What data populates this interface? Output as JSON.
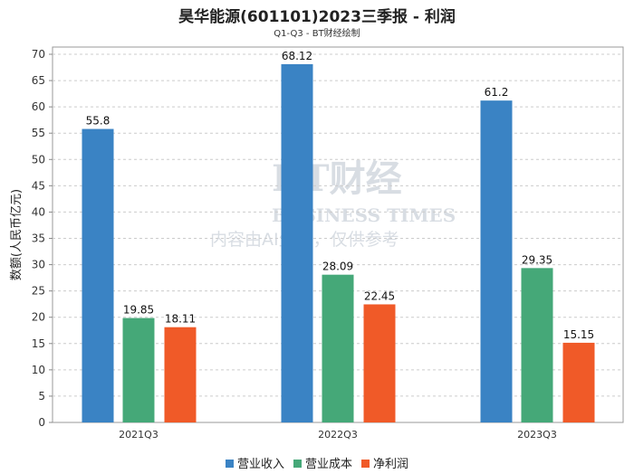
{
  "chart_data": {
    "type": "bar",
    "title": "昊华能源(601101)2023三季报 - 利润",
    "subtitle": "Q1-Q3 - BT财经绘制",
    "xlabel": "",
    "ylabel": "数额(人民币亿元)",
    "ylim": [
      0,
      70
    ],
    "ytick_step": 5,
    "grid": true,
    "legend_position": "bottom",
    "categories": [
      "2021Q3",
      "2022Q3",
      "2023Q3"
    ],
    "series": [
      {
        "name": "营业收入",
        "color": "#3a83c4",
        "values": [
          55.8,
          68.12,
          61.2
        ]
      },
      {
        "name": "营业成本",
        "color": "#45a878",
        "values": [
          19.85,
          28.09,
          29.35
        ]
      },
      {
        "name": "净利润",
        "color": "#f05a28",
        "values": [
          18.11,
          22.45,
          15.15
        ]
      }
    ]
  },
  "watermark": {
    "brand": "BT财经",
    "brand_en": "BUSINESS TIMES",
    "notice": "内容由AI生成，仅供参考"
  }
}
